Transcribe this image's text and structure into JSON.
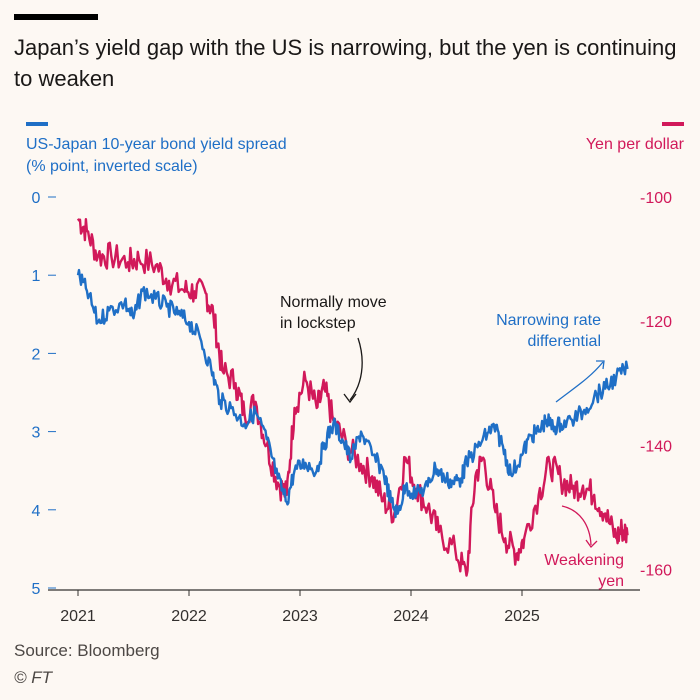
{
  "title": "Japan’s yield gap with the US is narrowing, but the yen is continuing to weaken",
  "source": "Source: Bloomberg",
  "credit": "© FT",
  "colors": {
    "spread": "#1f6fc6",
    "yen": "#d1195a",
    "text": "#33302e",
    "axis": "#8a8580",
    "background": "#fdf8f3"
  },
  "chart_data": {
    "type": "line",
    "title": "Japan’s yield gap with the US is narrowing, but the yen is continuing to weaken",
    "x_ticks": [
      "2021",
      "2022",
      "2023",
      "2024",
      "2025"
    ],
    "x_range": [
      2021.0,
      2025.95
    ],
    "left_axis": {
      "label_line1": "US-Japan 10-year bond yield spread",
      "label_line2": "(% point, inverted scale)",
      "range": [
        0,
        5
      ],
      "inverted": true,
      "ticks": [
        "0",
        "1",
        "2",
        "3",
        "4",
        "5"
      ]
    },
    "right_axis": {
      "label": "Yen per dollar",
      "range": [
        -100,
        -163
      ],
      "ticks": [
        "-100",
        "-120",
        "-140",
        "-160"
      ]
    },
    "annotations": [
      {
        "id": "lockstep",
        "lines": [
          "Normally move",
          "in lockstep"
        ]
      },
      {
        "id": "narrowing",
        "lines": [
          "Narrowing rate",
          "differential"
        ]
      },
      {
        "id": "weakening",
        "lines": [
          "Weakening",
          "yen"
        ]
      }
    ],
    "series": [
      {
        "axis": "left",
        "points": [
          [
            2021.0,
            1.0
          ],
          [
            2021.08,
            1.2
          ],
          [
            2021.18,
            1.6
          ],
          [
            2021.28,
            1.45
          ],
          [
            2021.42,
            1.35
          ],
          [
            2021.5,
            1.55
          ],
          [
            2021.58,
            1.2
          ],
          [
            2021.7,
            1.3
          ],
          [
            2021.8,
            1.4
          ],
          [
            2021.9,
            1.5
          ],
          [
            2022.0,
            1.6
          ],
          [
            2022.1,
            1.8
          ],
          [
            2022.2,
            2.2
          ],
          [
            2022.28,
            2.6
          ],
          [
            2022.38,
            2.7
          ],
          [
            2022.5,
            2.9
          ],
          [
            2022.6,
            2.75
          ],
          [
            2022.7,
            3.1
          ],
          [
            2022.8,
            3.6
          ],
          [
            2022.88,
            3.9
          ],
          [
            2022.95,
            3.5
          ],
          [
            2023.05,
            3.4
          ],
          [
            2023.15,
            3.5
          ],
          [
            2023.22,
            3.15
          ],
          [
            2023.3,
            2.9
          ],
          [
            2023.38,
            3.1
          ],
          [
            2023.46,
            3.35
          ],
          [
            2023.55,
            3.0
          ],
          [
            2023.65,
            3.3
          ],
          [
            2023.75,
            3.5
          ],
          [
            2023.82,
            3.9
          ],
          [
            2023.88,
            4.05
          ],
          [
            2023.95,
            3.7
          ],
          [
            2024.05,
            3.8
          ],
          [
            2024.15,
            3.7
          ],
          [
            2024.22,
            3.45
          ],
          [
            2024.3,
            3.6
          ],
          [
            2024.38,
            3.65
          ],
          [
            2024.45,
            3.6
          ],
          [
            2024.5,
            3.4
          ],
          [
            2024.6,
            3.2
          ],
          [
            2024.7,
            3.0
          ],
          [
            2024.75,
            2.95
          ],
          [
            2024.82,
            3.15
          ],
          [
            2024.9,
            3.55
          ],
          [
            2025.0,
            3.3
          ],
          [
            2025.08,
            3.05
          ],
          [
            2025.15,
            3.0
          ],
          [
            2025.22,
            2.85
          ],
          [
            2025.28,
            2.95
          ],
          [
            2025.35,
            2.9
          ],
          [
            2025.45,
            2.85
          ],
          [
            2025.55,
            2.75
          ],
          [
            2025.65,
            2.55
          ],
          [
            2025.75,
            2.45
          ],
          [
            2025.85,
            2.3
          ],
          [
            2025.95,
            2.2
          ]
        ]
      },
      {
        "axis": "right",
        "points": [
          [
            2021.0,
            -103.5
          ],
          [
            2021.08,
            -105.5
          ],
          [
            2021.18,
            -109.5
          ],
          [
            2021.3,
            -109.5
          ],
          [
            2021.45,
            -110.5
          ],
          [
            2021.55,
            -110.0
          ],
          [
            2021.7,
            -111.0
          ],
          [
            2021.82,
            -113.5
          ],
          [
            2021.95,
            -115.0
          ],
          [
            2022.05,
            -115.2
          ],
          [
            2022.15,
            -115.5
          ],
          [
            2022.22,
            -119.0
          ],
          [
            2022.3,
            -128.0
          ],
          [
            2022.42,
            -130.0
          ],
          [
            2022.5,
            -135.0
          ],
          [
            2022.6,
            -133.0
          ],
          [
            2022.7,
            -140.0
          ],
          [
            2022.8,
            -146.0
          ],
          [
            2022.88,
            -148.0
          ],
          [
            2022.95,
            -134.0
          ],
          [
            2023.05,
            -129.5
          ],
          [
            2023.15,
            -134.0
          ],
          [
            2023.22,
            -131.0
          ],
          [
            2023.3,
            -136.0
          ],
          [
            2023.42,
            -140.0
          ],
          [
            2023.55,
            -143.0
          ],
          [
            2023.65,
            -145.0
          ],
          [
            2023.75,
            -149.0
          ],
          [
            2023.85,
            -151.0
          ],
          [
            2023.95,
            -142.0
          ],
          [
            2024.05,
            -147.0
          ],
          [
            2024.15,
            -150.0
          ],
          [
            2024.25,
            -154.0
          ],
          [
            2024.4,
            -157.0
          ],
          [
            2024.5,
            -161.0
          ],
          [
            2024.58,
            -145.0
          ],
          [
            2024.65,
            -142.0
          ],
          [
            2024.75,
            -150.0
          ],
          [
            2024.85,
            -155.0
          ],
          [
            2024.95,
            -157.5
          ],
          [
            2025.02,
            -155.0
          ],
          [
            2025.15,
            -148.0
          ],
          [
            2025.25,
            -143.0
          ],
          [
            2025.35,
            -145.5
          ],
          [
            2025.45,
            -147.0
          ],
          [
            2025.55,
            -146.5
          ],
          [
            2025.65,
            -148.0
          ],
          [
            2025.75,
            -151.0
          ],
          [
            2025.85,
            -155.0
          ],
          [
            2025.9,
            -153.5
          ],
          [
            2025.95,
            -154.5
          ]
        ]
      }
    ]
  }
}
